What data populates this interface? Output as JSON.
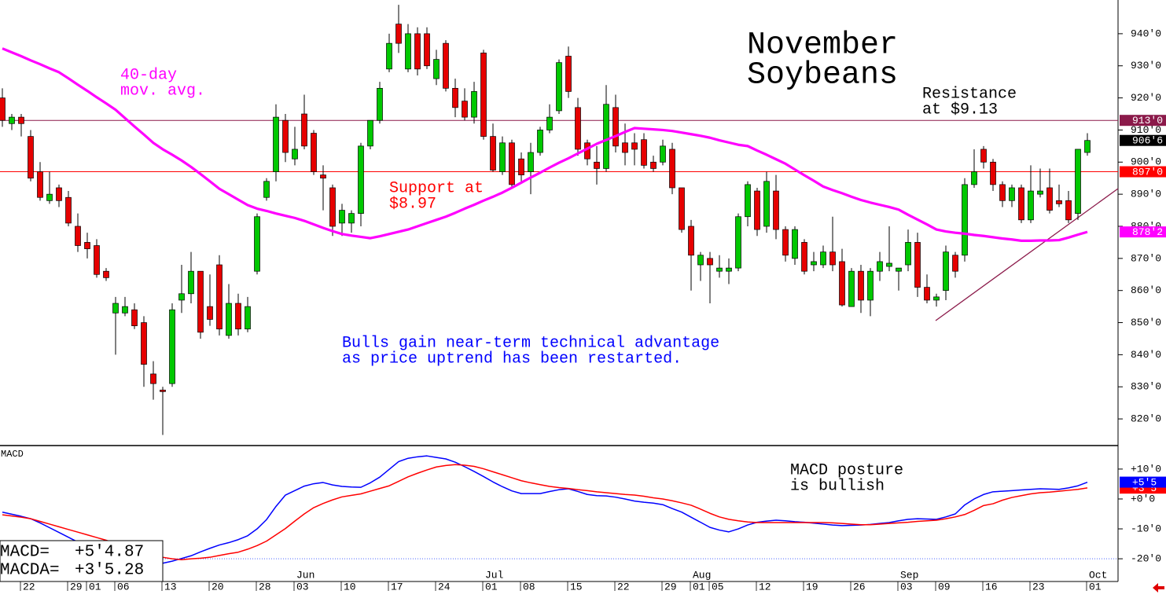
{
  "chart_data": [
    {
      "type": "candlestick",
      "title_lines": [
        "November",
        "Soybeans"
      ],
      "categories": [
        null,
        null,
        "22",
        null,
        null,
        null,
        null,
        "29",
        null,
        "01",
        null,
        null,
        "06",
        null,
        null,
        null,
        null,
        "13",
        null,
        null,
        null,
        null,
        "20",
        null,
        null,
        null,
        null,
        "28",
        null,
        null,
        null,
        "03",
        null,
        null,
        null,
        null,
        "10",
        null,
        null,
        null,
        null,
        "17",
        null,
        null,
        null,
        null,
        "24",
        null,
        null,
        null,
        null,
        "01",
        null,
        null,
        null,
        "08",
        null,
        null,
        null,
        null,
        "15",
        null,
        null,
        null,
        null,
        "22",
        null,
        null,
        null,
        null,
        "29",
        null,
        null,
        "01",
        null,
        "05",
        null,
        null,
        null,
        null,
        "12",
        null,
        null,
        null,
        null,
        "19",
        null,
        null,
        null,
        null,
        "26",
        null,
        null,
        null,
        null,
        "03",
        null,
        null,
        null,
        "09",
        null,
        null,
        null,
        null,
        "16",
        null,
        null,
        null,
        null,
        "23",
        null,
        null,
        null,
        null,
        null,
        "01"
      ],
      "months": [
        null,
        null,
        null,
        null,
        null,
        null,
        null,
        null,
        null,
        null,
        null,
        null,
        null,
        null,
        null,
        null,
        null,
        null,
        null,
        null,
        null,
        null,
        null,
        null,
        null,
        null,
        null,
        null,
        null,
        null,
        null,
        "Jun",
        null,
        null,
        null,
        null,
        null,
        null,
        null,
        null,
        null,
        null,
        null,
        null,
        null,
        null,
        null,
        null,
        null,
        null,
        null,
        "Jul",
        null,
        null,
        null,
        null,
        null,
        null,
        null,
        null,
        null,
        null,
        null,
        null,
        null,
        null,
        null,
        null,
        null,
        null,
        null,
        null,
        null,
        "Aug",
        null,
        null,
        null,
        null,
        null,
        null,
        null,
        null,
        null,
        null,
        null,
        null,
        null,
        null,
        null,
        null,
        null,
        null,
        null,
        null,
        null,
        "Sep",
        null,
        null,
        null,
        null,
        null,
        null,
        null,
        null,
        null,
        null,
        null,
        null,
        null,
        null,
        null,
        null,
        null,
        null,
        null,
        "Oct"
      ],
      "open": [
        920,
        912,
        914,
        908,
        897,
        888,
        892,
        889,
        880,
        875,
        874,
        866,
        853,
        853,
        854,
        850,
        834,
        829,
        831,
        857,
        859,
        866,
        855,
        868,
        846,
        856,
        848,
        866,
        889,
        897,
        913,
        901,
        915,
        909,
        896,
        892,
        881,
        881,
        884,
        905,
        913,
        929,
        943,
        929,
        940,
        940,
        926,
        937,
        923,
        919,
        914,
        934,
        908,
        897,
        906,
        901,
        897,
        903,
        910,
        916,
        933,
        917,
        906,
        900,
        898,
        917,
        906,
        906,
        907,
        900,
        900,
        904,
        892,
        880,
        868,
        870,
        866,
        866,
        867,
        883,
        891,
        880,
        891,
        879,
        870,
        875,
        868,
        868,
        872,
        869,
        855,
        866,
        857,
        866,
        867.5,
        866,
        868,
        875,
        861,
        857,
        860,
        871,
        871,
        893,
        904,
        900,
        893,
        888,
        892,
        882,
        890,
        892,
        888,
        888,
        884,
        903
      ],
      "high": [
        923,
        915,
        915,
        910,
        900,
        897,
        893,
        891,
        884,
        878,
        876,
        867,
        858,
        858,
        856,
        852,
        838,
        830,
        856,
        868,
        872,
        866,
        865,
        871,
        862,
        859,
        858,
        884,
        895,
        918,
        915,
        911,
        921,
        910,
        899,
        893,
        887,
        885,
        906,
        913,
        925,
        940,
        949,
        943,
        942,
        942,
        935,
        938,
        926,
        923,
        925,
        935,
        912,
        908,
        907,
        903,
        906,
        911,
        918,
        932,
        936,
        920,
        907,
        905,
        924,
        921,
        912,
        909,
        909,
        902,
        907,
        906,
        892,
        882,
        872,
        872,
        871,
        870,
        884,
        894,
        892,
        897,
        896,
        880,
        880,
        876,
        872,
        874,
        883,
        873,
        867,
        868,
        867,
        872,
        880,
        867,
        879,
        878,
        865,
        859,
        874,
        872,
        895,
        904,
        905,
        901,
        894,
        893,
        893,
        899,
        898,
        898,
        893,
        891,
        904,
        909
      ],
      "low": [
        911,
        910,
        908,
        894,
        888,
        887,
        886,
        880,
        872,
        870,
        864,
        863,
        840,
        852,
        848,
        830,
        826,
        815,
        830,
        853,
        856,
        845,
        849,
        846,
        845,
        846,
        847,
        865,
        888,
        894,
        900,
        899,
        904,
        896,
        885,
        877,
        877,
        878,
        880,
        904,
        912,
        928,
        934,
        928,
        927,
        929,
        924,
        922,
        914,
        913,
        912,
        907,
        897,
        896,
        892,
        894,
        890,
        902,
        909,
        915,
        920,
        902,
        899,
        893,
        897,
        903,
        899,
        899,
        898,
        897,
        899,
        890,
        878,
        860,
        863,
        856,
        864,
        862,
        866,
        880,
        877,
        878,
        876,
        869,
        868,
        865,
        866,
        867,
        866,
        855,
        855,
        853,
        852,
        863,
        866,
        860,
        866,
        858,
        856,
        855,
        857,
        864,
        869,
        892,
        898,
        891,
        886,
        886,
        881,
        881,
        889,
        884,
        886,
        881,
        882,
        902
      ],
      "close": [
        913,
        914,
        912,
        895,
        889,
        890,
        888,
        881,
        874,
        873,
        865,
        864,
        856,
        855,
        849,
        837,
        831,
        828.5,
        854,
        859,
        866,
        847,
        851,
        848,
        856,
        848,
        855,
        883,
        894,
        914,
        903,
        904,
        905,
        897,
        895,
        880,
        885,
        884,
        905,
        913,
        923,
        937,
        937,
        940,
        929,
        930,
        932,
        923,
        917,
        914,
        922,
        908,
        897.5,
        906,
        893,
        896,
        903,
        910,
        914,
        931,
        922,
        904,
        901,
        898,
        918,
        905,
        903,
        904,
        899,
        898,
        905,
        892,
        879,
        871,
        871,
        868,
        867,
        867,
        883,
        893,
        879,
        894,
        879,
        871,
        879,
        866,
        869,
        872,
        868,
        855.5,
        866,
        857,
        866,
        869,
        868.5,
        867,
        875,
        861,
        857,
        858,
        872,
        866,
        893,
        897,
        900,
        893,
        888,
        892,
        882,
        891,
        891,
        885,
        887,
        882,
        904,
        906.75
      ],
      "up_color": "#00c800",
      "down_color": "#e60000",
      "overlays": [
        {
          "color": "#ff00ff",
          "values": [
            935.4,
            934.2,
            933,
            931.7,
            930.5,
            929.2,
            928,
            926.1,
            924.1,
            922.2,
            920.2,
            918.3,
            916.3,
            913.7,
            911.1,
            908.6,
            906,
            904,
            902.3,
            900.5,
            898.5,
            896.3,
            894,
            891.7,
            890,
            888.3,
            886.6,
            885.5,
            884.8,
            884,
            883.3,
            882.6,
            881.7,
            880.6,
            879.5,
            878.5,
            877.6,
            877.1,
            876.7,
            876.3,
            876.9,
            877.6,
            878.3,
            879,
            880,
            881,
            882,
            883,
            884.2,
            885.5,
            886.7,
            888,
            889.2,
            890.5,
            892,
            893.6,
            895.2,
            896.7,
            898.3,
            899.8,
            901.2,
            902.7,
            904.2,
            905.7,
            906.9,
            908.1,
            909.4,
            910.6,
            910.4,
            910.2,
            910,
            909.7,
            909.2,
            908.7,
            908.2,
            907.6,
            906.8,
            906.1,
            905.4,
            905,
            903.6,
            902.3,
            900.9,
            899.5,
            897.7,
            895.9,
            894.2,
            892.4,
            891.3,
            890.3,
            889.2,
            888.2,
            887.4,
            886.7,
            886,
            885.2,
            883.6,
            882.1,
            880.6,
            879,
            878.4,
            878,
            877.7,
            877.3,
            877,
            876.6,
            876.2,
            875.9,
            875.5,
            875.5,
            875.6,
            875.6,
            875.7,
            876.5,
            877.4,
            878.25
          ]
        }
      ],
      "ylim": [
        811.7,
        950.5
      ],
      "yticks": [
        {
          "value": 820,
          "label": "820'0"
        },
        {
          "value": 830,
          "label": "830'0"
        },
        {
          "value": 840,
          "label": "840'0"
        },
        {
          "value": 850,
          "label": "850'0"
        },
        {
          "value": 860,
          "label": "860'0"
        },
        {
          "value": 870,
          "label": "870'0"
        },
        {
          "value": 880,
          "label": "880'0"
        },
        {
          "value": 890,
          "label": "890'0"
        },
        {
          "value": 900,
          "label": "900'0"
        },
        {
          "value": 910,
          "label": "910'0"
        },
        {
          "value": 920,
          "label": "920'0"
        },
        {
          "value": 930,
          "label": "930'0"
        },
        {
          "value": 940,
          "label": "940'0"
        }
      ],
      "price_tags": [
        {
          "value": 913,
          "label": "913'0",
          "color": "#8b1a4a",
          "line": true
        },
        {
          "value": 906.75,
          "label": "906'6",
          "color": "#000000"
        },
        {
          "value": 897,
          "label": "897'0",
          "color": "#ff0000",
          "line": true
        },
        {
          "value": 878.25,
          "label": "878'2",
          "color": "#ff00ff"
        }
      ],
      "annotations": [
        {
          "lines": [
            "40-day",
            "mov. avg."
          ],
          "color": "#ff00ff"
        },
        {
          "lines": [
            "Support at",
            "$8.97"
          ],
          "color": "#ff0000"
        },
        {
          "lines": [
            "Resistance",
            "at $9.13"
          ],
          "color": "#000000"
        },
        {
          "lines": [
            "Bulls gain near-term technical advantage",
            "as price uptrend has been restarted."
          ],
          "color": "#0000ff"
        }
      ]
    },
    {
      "type": "line",
      "title": "MACD",
      "series": [
        {
          "color": "#0000ff",
          "values": [
            -4.4,
            -5.1,
            -5.8,
            -6.6,
            -8.0,
            -9.6,
            -11.2,
            -12.8,
            -14.4,
            -15.2,
            -15.9,
            -16.7,
            -17.4,
            -18.4,
            -19.4,
            -20.4,
            -21.4,
            -21.5,
            -20.8,
            -19.9,
            -19.0,
            -17.7,
            -16.5,
            -15.4,
            -14.6,
            -13.6,
            -12.3,
            -10.0,
            -6.9,
            -2.5,
            1.3,
            2.8,
            4.3,
            5.1,
            5.5,
            4.7,
            4.2,
            4.0,
            3.9,
            5.4,
            7.3,
            9.9,
            12.5,
            13.6,
            14.1,
            14.4,
            13.9,
            13.4,
            12.3,
            10.8,
            9.2,
            7.5,
            5.7,
            4.1,
            2.7,
            1.8,
            1.8,
            1.8,
            2.5,
            3.1,
            3.4,
            2.5,
            1.5,
            1.1,
            1.0,
            0.6,
            0,
            -0.7,
            -1.1,
            -1.4,
            -1.9,
            -3.2,
            -4.4,
            -6.1,
            -7.8,
            -9.5,
            -10.4,
            -11.0,
            -10.0,
            -8.7,
            -7.8,
            -7.4,
            -7.1,
            -7.3,
            -7.6,
            -7.8,
            -8.1,
            -8.4,
            -8.7,
            -8.9,
            -8.8,
            -8.7,
            -8.5,
            -8.2,
            -7.9,
            -7.3,
            -6.8,
            -6.6,
            -6.7,
            -6.8,
            -6.0,
            -5.0,
            -2.0,
            0,
            1.5,
            2.4,
            2.6,
            2.8,
            3.0,
            3.2,
            3.4,
            3.3,
            3.2,
            3.7,
            4.4,
            5.6
          ]
        },
        {
          "color": "#ff0000",
          "values": [
            -5.3,
            -5.7,
            -6.1,
            -6.6,
            -7.5,
            -8.4,
            -9.3,
            -10.2,
            -11.1,
            -12.0,
            -12.9,
            -13.8,
            -14.8,
            -15.9,
            -16.7,
            -17.5,
            -18.3,
            -19.5,
            -20.0,
            -20.3,
            -20.0,
            -19.8,
            -19.5,
            -18.9,
            -18.3,
            -17.8,
            -16.8,
            -15.6,
            -14.1,
            -12.0,
            -9.9,
            -7.4,
            -5.0,
            -2.9,
            -1.5,
            -0.3,
            0.7,
            1.2,
            1.7,
            2.6,
            3.5,
            4.4,
            5.9,
            7.4,
            8.6,
            9.7,
            10.7,
            11.2,
            11.5,
            11.3,
            10.9,
            10.1,
            9.1,
            8.1,
            7.1,
            6.1,
            5.4,
            4.8,
            4.2,
            3.8,
            3.5,
            3.1,
            2.8,
            2.4,
            2.1,
            1.8,
            1.5,
            1.3,
            0.9,
            0.4,
            0,
            -0.6,
            -1.3,
            -2.1,
            -3.4,
            -4.8,
            -6.0,
            -6.8,
            -7.3,
            -7.7,
            -7.9,
            -7.9,
            -7.9,
            -7.9,
            -7.9,
            -7.9,
            -7.9,
            -7.9,
            -8.0,
            -8.2,
            -8.4,
            -8.6,
            -8.6,
            -8.4,
            -8.2,
            -8.0,
            -7.8,
            -7.5,
            -7.3,
            -7.1,
            -6.6,
            -6.0,
            -5.2,
            -3.8,
            -2.2,
            -1.6,
            -0.4,
            0.5,
            1.1,
            1.7,
            2.1,
            2.3,
            2.6,
            2.9,
            3.2,
            3.7
          ]
        }
      ],
      "ylim": [
        -27.6,
        17.6
      ],
      "yticks": [
        {
          "value": 10,
          "label": "+10'0"
        },
        {
          "value": 0,
          "label": "+0'0"
        },
        {
          "value": -10,
          "label": "-10'0"
        },
        {
          "value": -20,
          "label": "-20'0"
        }
      ],
      "price_tags": [
        {
          "value": 3.625,
          "label": "+3'5",
          "color": "#ff0000"
        },
        {
          "value": 5.625,
          "label": "+5'5",
          "color": "#0000ff"
        }
      ],
      "readouts": [
        {
          "label": "MACD=",
          "value": "+5'4.87"
        },
        {
          "label": "MACDA=",
          "value": "+3'5.28"
        }
      ],
      "annotations": [
        {
          "lines": [
            "MACD posture",
            "is bullish"
          ],
          "color": "#000000"
        }
      ]
    }
  ]
}
